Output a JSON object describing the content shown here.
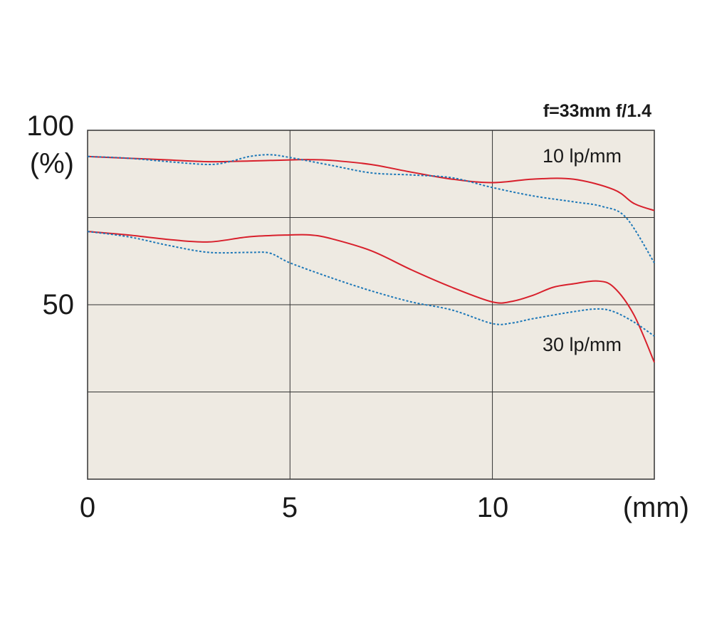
{
  "chart_data": {
    "type": "line",
    "title": "f=33mm f/1.4",
    "x_unit_label": "(mm)",
    "y_unit_label": "(%)",
    "xlim": [
      0,
      14
    ],
    "ylim": [
      0,
      100
    ],
    "x_ticks": [
      0,
      5,
      10
    ],
    "y_ticks": [
      50,
      100
    ],
    "grid_x": [
      5,
      10
    ],
    "grid_y": [
      25,
      50,
      75
    ],
    "grid": true,
    "plot_background": "#eeeae2",
    "colors": {
      "sagittal": "#d8202c",
      "meridional": "#1d78b8",
      "grid": "#333333"
    },
    "annotations": [
      {
        "text": "10 lp/mm",
        "x": 12.5,
        "y": 90.5
      },
      {
        "text": "30 lp/mm",
        "x": 12.5,
        "y": 38.5
      }
    ],
    "series": [
      {
        "style": "solid",
        "color": "#d8202c",
        "points": [
          [
            0,
            92.5
          ],
          [
            1,
            92.0
          ],
          [
            2,
            91.5
          ],
          [
            3,
            91.0
          ],
          [
            4,
            91.2
          ],
          [
            5,
            91.5
          ],
          [
            5.5,
            91.6
          ],
          [
            6,
            91.4
          ],
          [
            7,
            90.2
          ],
          [
            8,
            88.0
          ],
          [
            9,
            86.0
          ],
          [
            10,
            85.0
          ],
          [
            11,
            86.0
          ],
          [
            12,
            86.0
          ],
          [
            13,
            83.0
          ],
          [
            13.5,
            79.0
          ],
          [
            14,
            77.0
          ]
        ]
      },
      {
        "style": "dotted",
        "color": "#1d78b8",
        "points": [
          [
            0,
            92.5
          ],
          [
            1,
            92.0
          ],
          [
            2,
            91.0
          ],
          [
            3,
            90.2
          ],
          [
            3.5,
            91.0
          ],
          [
            4,
            92.5
          ],
          [
            4.5,
            93.0
          ],
          [
            5,
            92.2
          ],
          [
            6,
            90.0
          ],
          [
            7,
            87.8
          ],
          [
            8,
            87.2
          ],
          [
            9,
            86.4
          ],
          [
            10,
            83.6
          ],
          [
            11,
            81.2
          ],
          [
            12,
            79.5
          ],
          [
            12.7,
            78.2
          ],
          [
            13.3,
            75.0
          ],
          [
            14,
            62.0
          ]
        ]
      },
      {
        "style": "solid",
        "color": "#d8202c",
        "points": [
          [
            0,
            71.0
          ],
          [
            1,
            70.0
          ],
          [
            2,
            68.7
          ],
          [
            3,
            68.0
          ],
          [
            4,
            69.5
          ],
          [
            5,
            70.0
          ],
          [
            5.5,
            70.0
          ],
          [
            6,
            69.0
          ],
          [
            7,
            65.5
          ],
          [
            8,
            60.0
          ],
          [
            9,
            55.0
          ],
          [
            10,
            50.8
          ],
          [
            10.5,
            51.0
          ],
          [
            11,
            52.7
          ],
          [
            11.5,
            55.0
          ],
          [
            12,
            56.0
          ],
          [
            12.6,
            56.8
          ],
          [
            13,
            55.0
          ],
          [
            13.5,
            47.0
          ],
          [
            14,
            33.5
          ]
        ]
      },
      {
        "style": "dotted",
        "color": "#1d78b8",
        "points": [
          [
            0,
            71.0
          ],
          [
            1,
            69.5
          ],
          [
            2,
            67.0
          ],
          [
            3,
            65.0
          ],
          [
            4,
            65.0
          ],
          [
            4.5,
            64.8
          ],
          [
            5,
            62.0
          ],
          [
            6,
            57.8
          ],
          [
            7,
            54.0
          ],
          [
            8,
            50.8
          ],
          [
            9,
            48.5
          ],
          [
            10,
            44.6
          ],
          [
            10.5,
            44.8
          ],
          [
            11,
            46.0
          ],
          [
            12,
            48.0
          ],
          [
            12.6,
            48.8
          ],
          [
            13,
            48.0
          ],
          [
            13.5,
            45.0
          ],
          [
            14,
            41.0
          ]
        ]
      }
    ]
  }
}
